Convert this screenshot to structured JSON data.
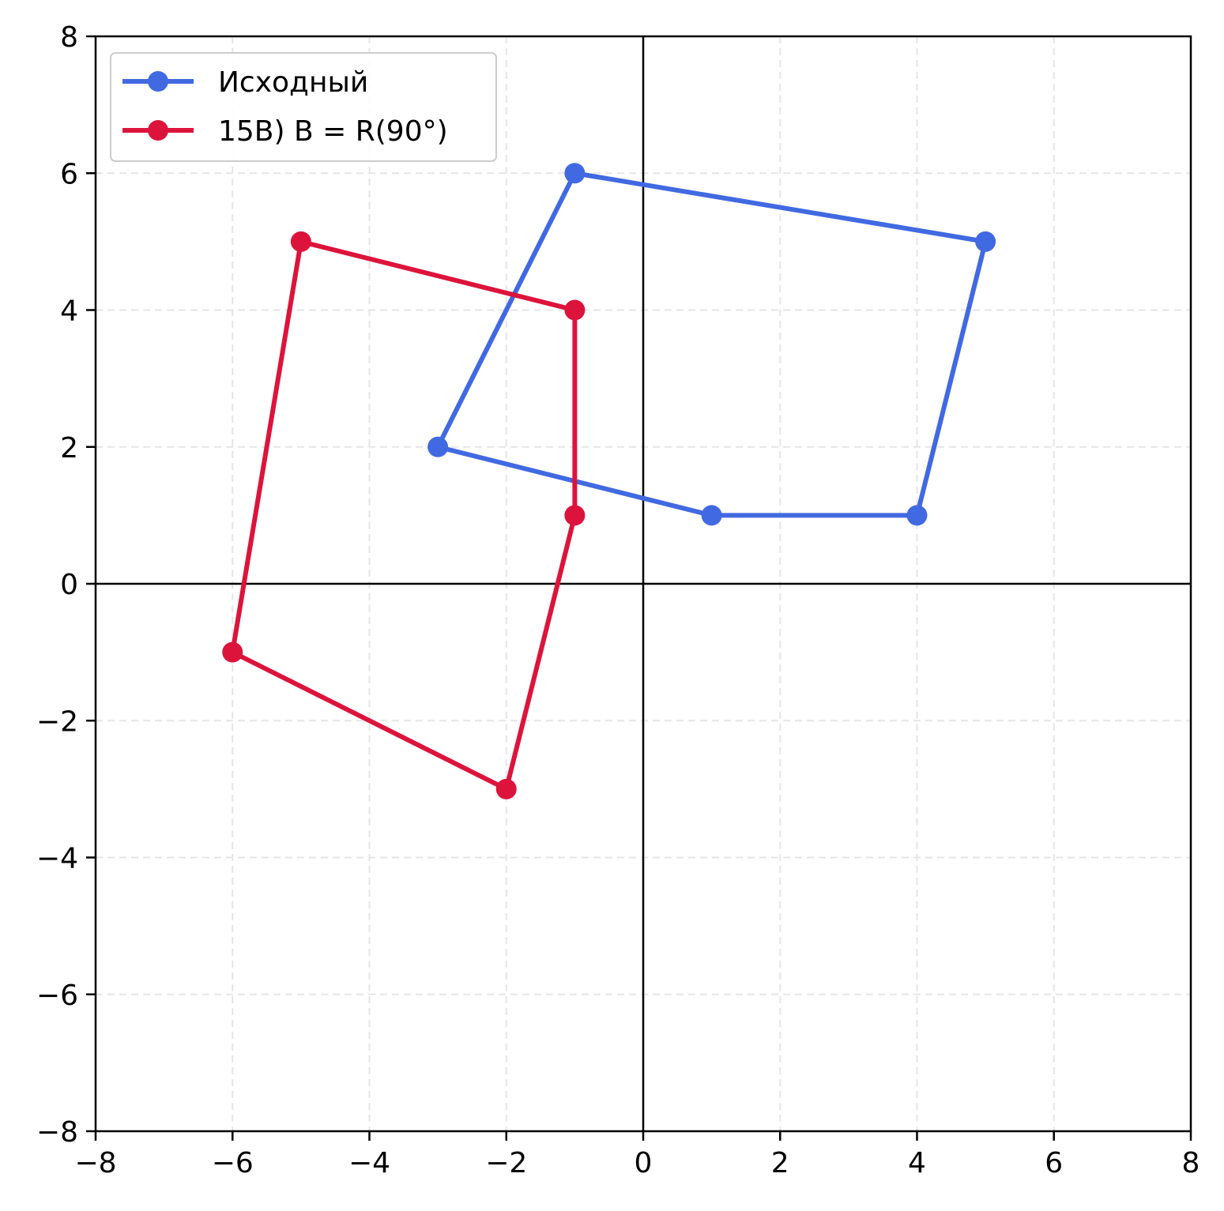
{
  "chart_data": {
    "type": "line",
    "title": "",
    "xlabel": "",
    "ylabel": "",
    "xlim": [
      -8,
      8
    ],
    "ylim": [
      -8,
      8
    ],
    "xticks": [
      -8,
      -6,
      -4,
      -2,
      0,
      2,
      4,
      6,
      8
    ],
    "yticks": [
      -8,
      -6,
      -4,
      -2,
      0,
      2,
      4,
      6,
      8
    ],
    "xtick_labels": [
      "−8",
      "−6",
      "−4",
      "−2",
      "0",
      "2",
      "4",
      "6",
      "8"
    ],
    "ytick_labels": [
      "−8",
      "−6",
      "−4",
      "−2",
      "0",
      "2",
      "4",
      "6",
      "8"
    ],
    "grid": true,
    "axis_lines_through_origin": true,
    "legend_position": "top-left",
    "series": [
      {
        "name": "Исходный",
        "color": "#4169e1",
        "closed": true,
        "points": [
          [
            -1,
            6
          ],
          [
            5,
            5
          ],
          [
            4,
            1
          ],
          [
            1,
            1
          ],
          [
            -3,
            2
          ]
        ]
      },
      {
        "name": "15B) B = R(90°)",
        "color": "#dc143c",
        "closed": true,
        "points": [
          [
            -6,
            -1
          ],
          [
            -5,
            5
          ],
          [
            -1,
            4
          ],
          [
            -1,
            1
          ],
          [
            -2,
            -3
          ]
        ]
      }
    ]
  }
}
